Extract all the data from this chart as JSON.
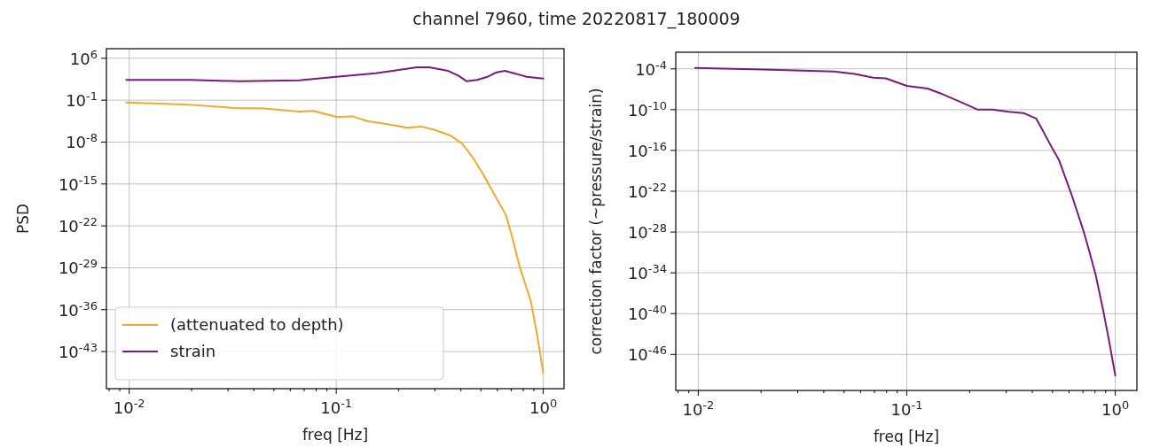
{
  "chart_data": [
    {
      "type": "line",
      "title": "channel 7960, time 20220817_180009",
      "xlabel": "freq [Hz]",
      "ylabel": "PSD",
      "log": "xy",
      "grid": true,
      "legend": "bottom left",
      "xlim": [
        0.00776,
        1.26
      ],
      "ylim": [
        6.3e-50,
        40000000.0
      ],
      "xticks": [
        {
          "value": 0.008,
          "label": null
        },
        {
          "value": 0.009,
          "label": null
        },
        {
          "value": 0.01,
          "label": "10$^{-2}$"
        },
        {
          "value": 0.02,
          "label": null
        },
        {
          "value": 0.03,
          "label": null
        },
        {
          "value": 0.04,
          "label": null
        },
        {
          "value": 0.05,
          "label": null
        },
        {
          "value": 0.06,
          "label": null
        },
        {
          "value": 0.07,
          "label": null
        },
        {
          "value": 0.08,
          "label": null
        },
        {
          "value": 0.09,
          "label": null
        },
        {
          "value": 0.1,
          "label": "10$^{-1}$"
        },
        {
          "value": 0.2,
          "label": null
        },
        {
          "value": 0.3,
          "label": null
        },
        {
          "value": 0.4,
          "label": null
        },
        {
          "value": 0.5,
          "label": null
        },
        {
          "value": 0.6,
          "label": null
        },
        {
          "value": 0.7,
          "label": null
        },
        {
          "value": 0.8,
          "label": null
        },
        {
          "value": 0.9,
          "label": null
        },
        {
          "value": 1,
          "label": "10$^{0}$"
        }
      ],
      "yticks": [
        {
          "value": 1000000.0,
          "label": "10$^{6}$"
        },
        {
          "value": 0.1,
          "label": "10$^{-1}$"
        },
        {
          "value": 1e-08,
          "label": "10$^{-8}$"
        },
        {
          "value": 1e-15,
          "label": "10$^{-15}$"
        },
        {
          "value": 1e-22,
          "label": "10$^{-22}$"
        },
        {
          "value": 1e-29,
          "label": "10$^{-29}$"
        },
        {
          "value": 1e-36,
          "label": "10$^{-36}$"
        },
        {
          "value": 1e-43,
          "label": "10$^{-43}$"
        }
      ],
      "series": [
        {
          "name": "(attenuated to depth)",
          "color": "#f0a92a",
          "x": [
            0.00968,
            0.0182,
            0.0324,
            0.0447,
            0.066,
            0.0776,
            0.1,
            0.12,
            0.141,
            0.191,
            0.219,
            0.257,
            0.302,
            0.355,
            0.407,
            0.457,
            0.513,
            0.575,
            0.661,
            0.708,
            0.767,
            0.871,
            0.933,
            1
          ],
          "values": [
            0.04,
            0.02,
            0.005,
            0.004,
            0.0013,
            0.0016,
            0.00016,
            0.0002,
            3.2e-05,
            6.3e-06,
            2.5e-06,
            4e-06,
            1e-06,
            1.3e-07,
            5e-09,
            2.5e-11,
            4e-14,
            3.2e-17,
            6.3e-21,
            1.3e-24,
            2e-29,
            2.5e-35,
            8e-41,
            2.5e-47
          ]
        },
        {
          "name": "strain",
          "color": "#7b1a7e",
          "x": [
            0.00968,
            0.02,
            0.0339,
            0.066,
            0.1,
            0.155,
            0.204,
            0.245,
            0.282,
            0.347,
            0.389,
            0.427,
            0.479,
            0.537,
            0.589,
            0.653,
            0.741,
            0.832,
            1
          ],
          "values": [
            251,
            251,
            141,
            200,
            794,
            3162,
            12600,
            31600,
            31600,
            7940,
            1260,
            141,
            251,
            794,
            3980,
            7940,
            2510,
            794,
            398
          ]
        }
      ]
    },
    {
      "type": "line",
      "xlabel": "freq [Hz]",
      "ylabel": "correction factor (~pressure/strain)",
      "log": "xy",
      "grid": true,
      "xlim": [
        0.0078,
        1.27
      ],
      "ylim": [
        5e-52,
        0.028
      ],
      "xticks": [
        {
          "value": 0.008,
          "label": null
        },
        {
          "value": 0.009,
          "label": null
        },
        {
          "value": 0.01,
          "label": "10$^{-2}$"
        },
        {
          "value": 0.02,
          "label": null
        },
        {
          "value": 0.03,
          "label": null
        },
        {
          "value": 0.04,
          "label": null
        },
        {
          "value": 0.05,
          "label": null
        },
        {
          "value": 0.06,
          "label": null
        },
        {
          "value": 0.07,
          "label": null
        },
        {
          "value": 0.08,
          "label": null
        },
        {
          "value": 0.09,
          "label": null
        },
        {
          "value": 0.1,
          "label": "10$^{-1}$"
        },
        {
          "value": 0.2,
          "label": null
        },
        {
          "value": 0.3,
          "label": null
        },
        {
          "value": 0.4,
          "label": null
        },
        {
          "value": 0.5,
          "label": null
        },
        {
          "value": 0.6,
          "label": null
        },
        {
          "value": 0.7,
          "label": null
        },
        {
          "value": 0.8,
          "label": null
        },
        {
          "value": 0.9,
          "label": null
        },
        {
          "value": 1,
          "label": "10$^{0}$"
        }
      ],
      "yticks": [
        {
          "value": 0.0001,
          "label": "10$^{-4}$"
        },
        {
          "value": 1e-10,
          "label": "10$^{-10}$"
        },
        {
          "value": 1e-16,
          "label": "10$^{-16}$"
        },
        {
          "value": 1e-22,
          "label": "10$^{-22}$"
        },
        {
          "value": 1e-28,
          "label": "10$^{-28}$"
        },
        {
          "value": 1e-34,
          "label": "10$^{-34}$"
        },
        {
          "value": 1e-40,
          "label": "10$^{-40}$"
        },
        {
          "value": 1e-46,
          "label": "10$^{-46}$"
        }
      ],
      "series": [
        {
          "color": "#7b1a7e",
          "x": [
            0.00966,
            0.0204,
            0.0447,
            0.0562,
            0.0692,
            0.0794,
            0.1,
            0.126,
            0.145,
            0.182,
            0.219,
            0.257,
            0.309,
            0.363,
            0.417,
            0.437,
            0.501,
            0.537,
            0.617,
            0.7,
            0.741,
            0.804,
            0.871,
            0.94,
            1
          ],
          "values": [
            0.00014,
            8e-05,
            4e-05,
            1.8e-05,
            5e-06,
            4e-06,
            3.2e-07,
            1.3e-07,
            2.5e-08,
            1.3e-09,
            1e-10,
            1e-10,
            5e-11,
            3.2e-11,
            5e-12,
            4e-13,
            1.6e-16,
            4e-18,
            3.2e-23,
            2.5e-28,
            6.3e-31,
            6.3e-35,
            6.3e-40,
            3.2e-45,
            8e-50
          ]
        }
      ]
    }
  ]
}
